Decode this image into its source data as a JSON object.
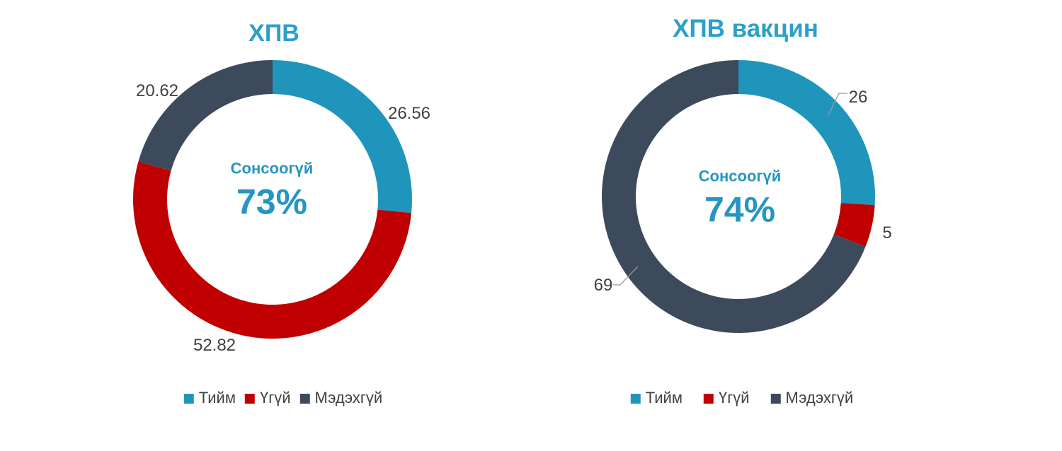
{
  "page": {
    "background": "#ffffff"
  },
  "palette": {
    "series_blue": "#2095BB",
    "series_red": "#C00000",
    "series_dark": "#3D4A5C",
    "title_blue": "#2BA0C9",
    "center_blue": "#2596C2",
    "label_gray": "#404040",
    "leader_gray": "#9B9B9B"
  },
  "chart_data": [
    {
      "type": "pie",
      "subtype": "donut",
      "title": "ХПВ",
      "categories": [
        "Тийм",
        "Үгүй",
        "Мэдэхгүй"
      ],
      "values": [
        26.56,
        52.82,
        20.62
      ],
      "value_labels": [
        "26.56",
        "52.82",
        "20.62"
      ],
      "colors": [
        "#2095BB",
        "#C00000",
        "#3D4A5C"
      ],
      "center_label": "Сонсоогүй",
      "center_value": "73%",
      "start_angle_deg": 0,
      "direction": "clockwise",
      "legend_position": "bottom"
    },
    {
      "type": "pie",
      "subtype": "donut",
      "title": "ХПВ вакцин",
      "categories": [
        "Тийм",
        "Үгүй",
        "Мэдэхгүй"
      ],
      "values": [
        26,
        5,
        69
      ],
      "value_labels": [
        "26",
        "5",
        "69"
      ],
      "colors": [
        "#2095BB",
        "#C00000",
        "#3D4A5C"
      ],
      "center_label": "Сонсоогүй",
      "center_value": "74%",
      "start_angle_deg": 0,
      "direction": "clockwise",
      "legend_position": "bottom"
    }
  ]
}
